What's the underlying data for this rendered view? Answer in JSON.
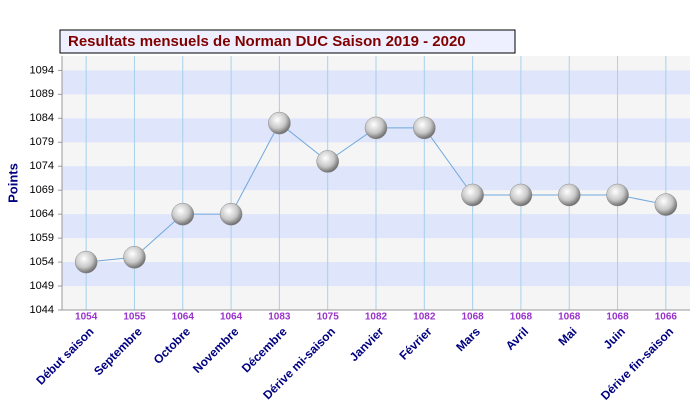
{
  "chart_data": {
    "type": "line",
    "title": "Resultats mensuels de Norman DUC Saison 2019 - 2020",
    "y_label": "Points",
    "categories": [
      "Début saison",
      "Septembre",
      "Octobre",
      "Novembre",
      "Décembre",
      "Dérive mi-saison",
      "Janvier",
      "Février",
      "Mars",
      "Avril",
      "Mai",
      "Juin",
      "Dérive fin-saison"
    ],
    "values": [
      1054,
      1055,
      1064,
      1064,
      1083,
      1075,
      1082,
      1082,
      1068,
      1068,
      1068,
      1068,
      1066
    ],
    "color": "#6fa8dc",
    "ylim": [
      1044,
      1097
    ],
    "yticks": [
      1044,
      1049,
      1054,
      1059,
      1064,
      1069,
      1074,
      1079,
      1084,
      1089,
      1094
    ],
    "grid": true
  }
}
